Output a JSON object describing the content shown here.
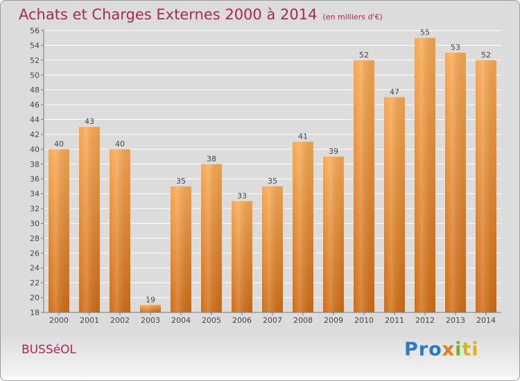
{
  "header": {
    "title": "Achats et Charges Externes 2000 à 2014",
    "subtitle": "(en milliers d'€)"
  },
  "footer": {
    "place": "BUSSéOL",
    "logo": [
      "Pro",
      "x",
      "i",
      "ti"
    ]
  },
  "chart_data": {
    "type": "bar",
    "title": "Achats et Charges Externes 2000 à 2014",
    "subtitle": "(en milliers d'€)",
    "categories": [
      "2000",
      "2001",
      "2002",
      "2003",
      "2004",
      "2005",
      "2006",
      "2007",
      "2008",
      "2009",
      "2010",
      "2011",
      "2012",
      "2013",
      "2014"
    ],
    "values": [
      40,
      43,
      40,
      19,
      35,
      38,
      33,
      35,
      41,
      39,
      52,
      47,
      55,
      53,
      52
    ],
    "ylim": [
      18,
      56
    ],
    "yticks": [
      18,
      20,
      22,
      24,
      26,
      28,
      30,
      32,
      34,
      36,
      38,
      40,
      42,
      44,
      46,
      48,
      50,
      52,
      54,
      56
    ],
    "grid": true,
    "colors": {
      "bar_top": "#f7a850",
      "bar_bottom": "#d06c14",
      "grid": "#ffffff",
      "text": "#444444",
      "title": "#b0245a"
    }
  }
}
